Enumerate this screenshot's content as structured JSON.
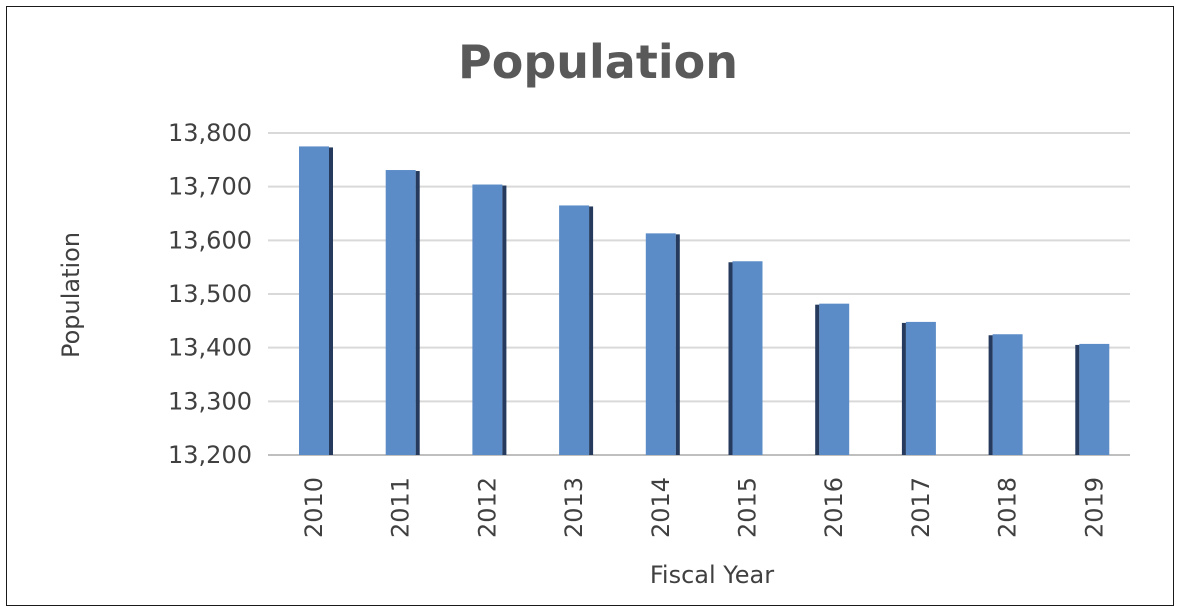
{
  "chart_data": {
    "type": "bar",
    "title": "Population",
    "xlabel": "Fiscal Year",
    "ylabel": "Population",
    "categories": [
      "2010",
      "2011",
      "2012",
      "2013",
      "2014",
      "2015",
      "2016",
      "2017",
      "2018",
      "2019"
    ],
    "values": [
      13775,
      13731,
      13704,
      13665,
      13613,
      13561,
      13482,
      13448,
      13425,
      13407
    ],
    "ylim": [
      13200,
      13800
    ],
    "yticks": [
      "13,200",
      "13,300",
      "13,400",
      "13,500",
      "13,600",
      "13,700",
      "13,800"
    ],
    "grid": true,
    "legend": "none",
    "colors": {
      "bar_front": "#5b8cc8",
      "bar_side": "#253a5c",
      "grid": "#d9d9d9"
    }
  }
}
